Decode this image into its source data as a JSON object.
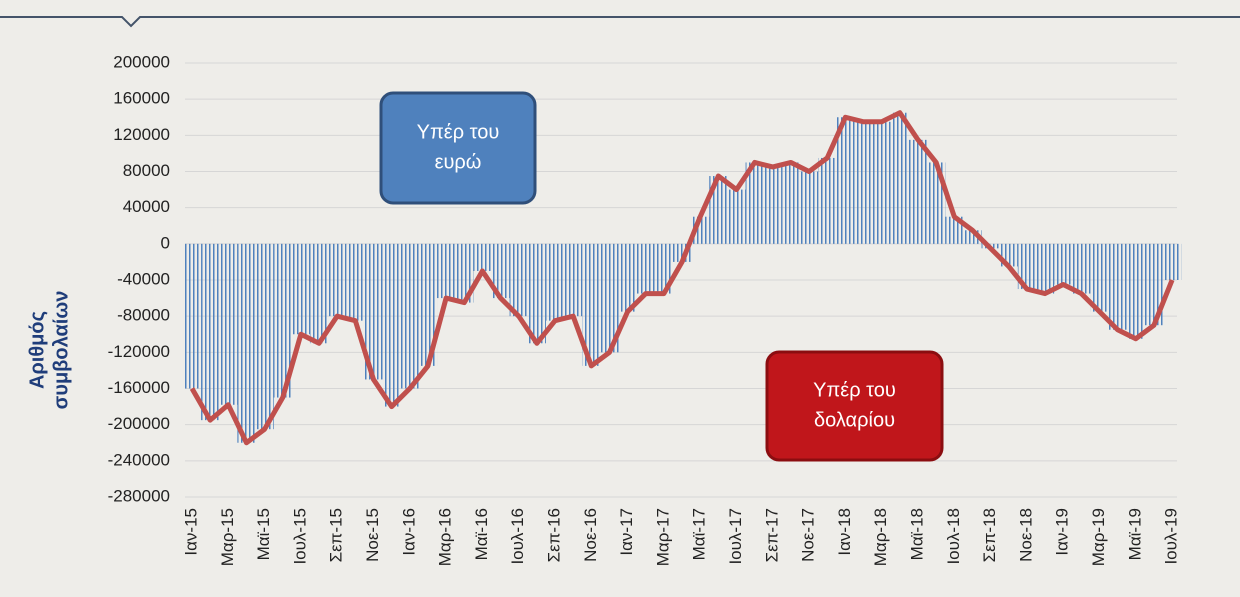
{
  "chart_data": {
    "type": "bar-line",
    "y_label": [
      "Αριθμός",
      "συμβολαίων"
    ],
    "annotations": [
      {
        "lines": [
          "Υπέρ του",
          "ευρώ"
        ],
        "color": "#4f81bd"
      },
      {
        "lines": [
          "Υπέρ του",
          "δολαρίου"
        ],
        "color": "#c0161b"
      }
    ],
    "categories": [
      "Ιαν-15",
      null,
      "Μαρ-15",
      null,
      "Μαϊ-15",
      null,
      "Ιουλ-15",
      null,
      "Σεπ-15",
      null,
      "Νοε-15",
      null,
      "Ιαν-16",
      null,
      "Μαρ-16",
      null,
      "Μαϊ-16",
      null,
      "Ιουλ-16",
      null,
      "Σεπ-16",
      null,
      "Νοε-16",
      null,
      "Ιαν-17",
      null,
      "Μαρ-17",
      null,
      "Μαϊ-17",
      null,
      "Ιουλ-17",
      null,
      "Σεπ-17",
      null,
      "Νοε-17",
      null,
      "Ιαν-18",
      null,
      "Μαρ-18",
      null,
      "Μαϊ-18",
      null,
      "Ιουλ-18",
      null,
      "Σεπ-18",
      null,
      "Νοε-18",
      null,
      "Ιαν-19",
      null,
      "Μαρ-19",
      null,
      "Μαϊ-19",
      null,
      "Ιουλ-19"
    ],
    "values": [
      -160000,
      -195000,
      -178000,
      -220000,
      -205000,
      -170000,
      -100000,
      -110000,
      -80000,
      -85000,
      -150000,
      -180000,
      -160000,
      -135000,
      -60000,
      -65000,
      -30000,
      -60000,
      -80000,
      -110000,
      -85000,
      -80000,
      -135000,
      -120000,
      -75000,
      -55000,
      -55000,
      -20000,
      30000,
      75000,
      60000,
      90000,
      85000,
      90000,
      80000,
      95000,
      140000,
      135000,
      135000,
      145000,
      115000,
      90000,
      30000,
      15000,
      -5000,
      -25000,
      -50000,
      -55000,
      -45000,
      -55000,
      -75000,
      -95000,
      -105000,
      -90000,
      -40000
    ],
    "bar_color": "#4f81bd",
    "line_color": "#c0504d",
    "ylim": [
      -280000,
      200000
    ],
    "yticks": [
      200000,
      160000,
      120000,
      80000,
      40000,
      0,
      -40000,
      -80000,
      -120000,
      -160000,
      -200000,
      -240000,
      -280000
    ],
    "grid": true
  }
}
